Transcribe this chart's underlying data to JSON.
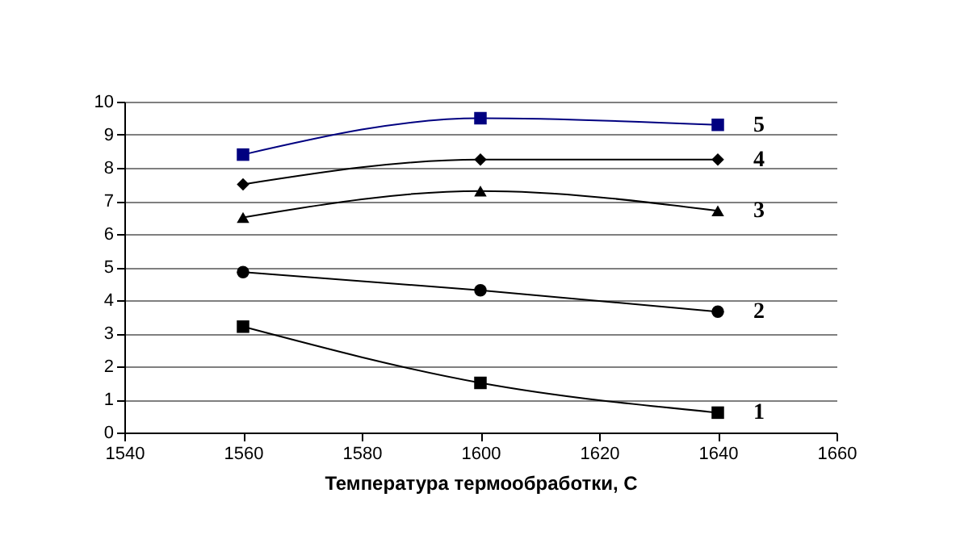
{
  "chart_data": {
    "type": "line",
    "xlabel": "Температура термообработки, С",
    "x": [
      1560,
      1600,
      1640
    ],
    "series": [
      {
        "name": "1",
        "color": "#000000",
        "marker": "square",
        "values": [
          3.2,
          1.5,
          0.6
        ]
      },
      {
        "name": "2",
        "color": "#000000",
        "marker": "circle",
        "values": [
          4.85,
          4.3,
          3.65
        ]
      },
      {
        "name": "3",
        "color": "#000000",
        "marker": "triangle",
        "values": [
          6.5,
          7.3,
          6.7
        ]
      },
      {
        "name": "4",
        "color": "#000000",
        "marker": "diamond",
        "values": [
          7.5,
          8.25,
          8.25
        ]
      },
      {
        "name": "5",
        "color": "#000080",
        "marker": "square",
        "values": [
          8.4,
          9.5,
          9.3
        ]
      }
    ],
    "xlim": [
      1540,
      1660
    ],
    "xticks": [
      1540,
      1560,
      1580,
      1600,
      1620,
      1640,
      1660
    ],
    "ylim": [
      0,
      10
    ],
    "yticks": [
      0,
      1,
      2,
      3,
      4,
      5,
      6,
      7,
      8,
      9,
      10
    ],
    "grid": "y"
  }
}
